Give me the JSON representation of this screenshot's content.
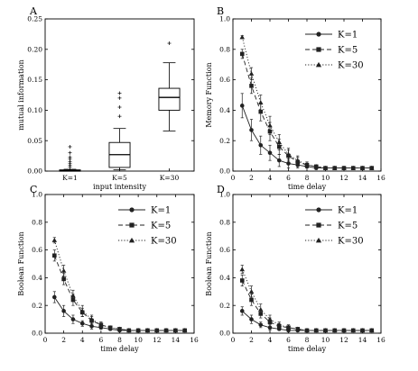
{
  "chart_data": [
    {
      "panel": "A",
      "type": "box",
      "xlabel": "input intensity",
      "ylabel": "mutual information",
      "ylim": [
        0,
        0.25
      ],
      "yticks": [
        "0.00",
        "0.05",
        "0.10",
        "0.15",
        "0.20",
        "0.25"
      ],
      "categories": [
        "K=1",
        "K=5",
        "K=30"
      ],
      "boxes": [
        {
          "q1": 0.0,
          "median": 0.001,
          "q3": 0.002,
          "whisker_low": 0.0,
          "whisker_high": 0.003,
          "outliers": [
            0.007,
            0.01,
            0.013,
            0.016,
            0.02,
            0.023,
            0.03,
            0.04
          ]
        },
        {
          "q1": 0.006,
          "median": 0.027,
          "q3": 0.047,
          "whisker_low": 0.002,
          "whisker_high": 0.07,
          "outliers": [
            0.09,
            0.105,
            0.12,
            0.128
          ]
        },
        {
          "q1": 0.1,
          "median": 0.121,
          "q3": 0.136,
          "whisker_low": 0.066,
          "whisker_high": 0.178,
          "outliers": [
            0.21
          ]
        }
      ]
    },
    {
      "panel": "B",
      "type": "line",
      "xlabel": "time delay",
      "ylabel": "Memory Function",
      "xlim": [
        0,
        16
      ],
      "ylim": [
        0,
        1.0
      ],
      "xticks": [
        "0",
        "2",
        "4",
        "6",
        "8",
        "10",
        "12",
        "14",
        "16"
      ],
      "yticks": [
        "0.0",
        "0.2",
        "0.4",
        "0.6",
        "0.8",
        "1.0"
      ],
      "legend_position": "top-right",
      "x": [
        1,
        2,
        3,
        4,
        5,
        6,
        7,
        8,
        9,
        10,
        11,
        12,
        13,
        14,
        15
      ],
      "series": [
        {
          "name": "K=1",
          "style": "solid",
          "marker": "circle",
          "values": [
            0.43,
            0.27,
            0.17,
            0.12,
            0.07,
            0.05,
            0.04,
            0.03,
            0.02,
            0.02,
            0.02,
            0.02,
            0.02,
            0.02,
            0.02
          ],
          "errors": [
            0.08,
            0.07,
            0.06,
            0.05,
            0.04,
            0.03,
            0.02,
            0.01,
            0.01,
            0.01,
            0.01,
            0.01,
            0.01,
            0.01,
            0.01
          ]
        },
        {
          "name": "K=5",
          "style": "dashed",
          "marker": "square",
          "values": [
            0.77,
            0.56,
            0.39,
            0.26,
            0.16,
            0.1,
            0.06,
            0.04,
            0.03,
            0.02,
            0.02,
            0.02,
            0.02,
            0.02,
            0.02
          ],
          "errors": [
            0.03,
            0.05,
            0.06,
            0.06,
            0.05,
            0.04,
            0.03,
            0.02,
            0.01,
            0.01,
            0.01,
            0.01,
            0.01,
            0.01,
            0.01
          ]
        },
        {
          "name": "K=30",
          "style": "dotted",
          "marker": "triangle",
          "values": [
            0.88,
            0.64,
            0.45,
            0.3,
            0.19,
            0.11,
            0.07,
            0.04,
            0.03,
            0.02,
            0.02,
            0.02,
            0.02,
            0.02,
            0.02
          ],
          "errors": [
            0.01,
            0.04,
            0.05,
            0.06,
            0.05,
            0.04,
            0.03,
            0.02,
            0.01,
            0.01,
            0.01,
            0.01,
            0.01,
            0.01,
            0.01
          ]
        }
      ]
    },
    {
      "panel": "C",
      "type": "line",
      "xlabel": "time delay",
      "ylabel": "Boolean Function",
      "xlim": [
        0,
        16
      ],
      "ylim": [
        0,
        1.0
      ],
      "xticks": [
        "0",
        "2",
        "4",
        "6",
        "8",
        "10",
        "12",
        "14",
        "16"
      ],
      "yticks": [
        "0.0",
        "0.2",
        "0.4",
        "0.6",
        "0.8",
        "1.0"
      ],
      "legend_position": "top-right",
      "x": [
        1,
        2,
        3,
        4,
        5,
        6,
        7,
        8,
        9,
        10,
        11,
        12,
        13,
        14,
        15
      ],
      "series": [
        {
          "name": "K=1",
          "style": "solid",
          "marker": "circle",
          "values": [
            0.26,
            0.16,
            0.1,
            0.07,
            0.05,
            0.04,
            0.03,
            0.02,
            0.02,
            0.02,
            0.02,
            0.02,
            0.02,
            0.02,
            0.02
          ],
          "errors": [
            0.04,
            0.04,
            0.03,
            0.02,
            0.02,
            0.01,
            0.01,
            0.01,
            0.01,
            0.01,
            0.01,
            0.01,
            0.01,
            0.01,
            0.01
          ]
        },
        {
          "name": "K=5",
          "style": "dashed",
          "marker": "square",
          "values": [
            0.56,
            0.39,
            0.24,
            0.15,
            0.09,
            0.06,
            0.04,
            0.03,
            0.02,
            0.02,
            0.02,
            0.02,
            0.02,
            0.02,
            0.02
          ],
          "errors": [
            0.04,
            0.04,
            0.04,
            0.03,
            0.03,
            0.02,
            0.01,
            0.01,
            0.01,
            0.01,
            0.01,
            0.01,
            0.01,
            0.01,
            0.01
          ]
        },
        {
          "name": "K=30",
          "style": "dotted",
          "marker": "triangle",
          "values": [
            0.67,
            0.45,
            0.27,
            0.16,
            0.1,
            0.06,
            0.04,
            0.03,
            0.02,
            0.02,
            0.02,
            0.02,
            0.02,
            0.02,
            0.02
          ],
          "errors": [
            0.02,
            0.04,
            0.04,
            0.04,
            0.03,
            0.02,
            0.01,
            0.01,
            0.01,
            0.01,
            0.01,
            0.01,
            0.01,
            0.01,
            0.01
          ]
        }
      ]
    },
    {
      "panel": "D",
      "type": "line",
      "xlabel": "time delay",
      "ylabel": "Boolean Function",
      "xlim": [
        0,
        16
      ],
      "ylim": [
        0,
        1.0
      ],
      "xticks": [
        "0",
        "2",
        "4",
        "6",
        "8",
        "10",
        "12",
        "14",
        "16"
      ],
      "yticks": [
        "0.0",
        "0.2",
        "0.4",
        "0.6",
        "0.8",
        "1.0"
      ],
      "legend_position": "top-right",
      "x": [
        1,
        2,
        3,
        4,
        5,
        6,
        7,
        8,
        9,
        10,
        11,
        12,
        13,
        14,
        15
      ],
      "series": [
        {
          "name": "K=1",
          "style": "solid",
          "marker": "circle",
          "values": [
            0.16,
            0.1,
            0.06,
            0.04,
            0.03,
            0.02,
            0.02,
            0.02,
            0.02,
            0.02,
            0.02,
            0.02,
            0.02,
            0.02,
            0.02
          ],
          "errors": [
            0.03,
            0.03,
            0.02,
            0.02,
            0.01,
            0.01,
            0.01,
            0.01,
            0.01,
            0.01,
            0.01,
            0.01,
            0.01,
            0.01,
            0.01
          ]
        },
        {
          "name": "K=5",
          "style": "dashed",
          "marker": "square",
          "values": [
            0.38,
            0.24,
            0.14,
            0.08,
            0.05,
            0.04,
            0.03,
            0.02,
            0.02,
            0.02,
            0.02,
            0.02,
            0.02,
            0.02,
            0.02
          ],
          "errors": [
            0.04,
            0.04,
            0.03,
            0.03,
            0.02,
            0.02,
            0.01,
            0.01,
            0.01,
            0.01,
            0.01,
            0.01,
            0.01,
            0.01,
            0.01
          ]
        },
        {
          "name": "K=30",
          "style": "dotted",
          "marker": "triangle",
          "values": [
            0.46,
            0.3,
            0.17,
            0.1,
            0.06,
            0.04,
            0.03,
            0.02,
            0.02,
            0.02,
            0.02,
            0.02,
            0.02,
            0.02,
            0.02
          ],
          "errors": [
            0.03,
            0.04,
            0.04,
            0.03,
            0.02,
            0.02,
            0.01,
            0.01,
            0.01,
            0.01,
            0.01,
            0.01,
            0.01,
            0.01,
            0.01
          ]
        }
      ]
    }
  ]
}
